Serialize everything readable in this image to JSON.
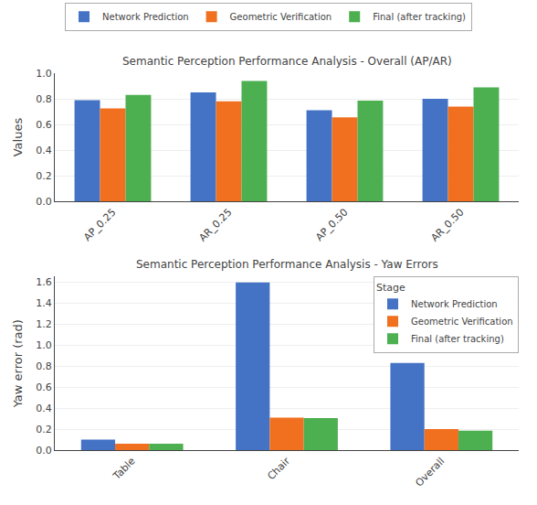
{
  "chart_data": [
    {
      "type": "bar",
      "title": "Semantic Perception Performance Analysis - Overall (AP/AR)",
      "categories": [
        "AP_0.25",
        "AR_0.25",
        "AP_0.50",
        "AR_0.50"
      ],
      "series": [
        {
          "name": "Network Prediction",
          "color": "#4472c4",
          "values": [
            0.79,
            0.85,
            0.71,
            0.8
          ]
        },
        {
          "name": "Geometric Verification",
          "color": "#f07020",
          "values": [
            0.725,
            0.78,
            0.655,
            0.74
          ]
        },
        {
          "name": "Final (after tracking)",
          "color": "#4caf50",
          "values": [
            0.83,
            0.94,
            0.785,
            0.89
          ]
        }
      ],
      "ylabel": "Values",
      "ylim": [
        0.0,
        1.0
      ],
      "yticks": [
        {
          "value": 0.0,
          "label": "0.0"
        },
        0.2,
        0.4,
        0.6,
        0.8,
        {
          "value": 1.0,
          "label": "1.0"
        }
      ],
      "grid": true,
      "legend": "top"
    },
    {
      "type": "bar",
      "title": "Semantic Perception Performance Analysis - Yaw Errors",
      "categories": [
        "Table",
        "Chair",
        "Overall"
      ],
      "series": [
        {
          "name": "Network Prediction",
          "color": "#4472c4",
          "values": [
            0.1,
            1.595,
            0.83
          ]
        },
        {
          "name": "Geometric Verification",
          "color": "#f07020",
          "values": [
            0.06,
            0.31,
            0.2
          ]
        },
        {
          "name": "Final (after tracking)",
          "color": "#4caf50",
          "values": [
            0.06,
            0.305,
            0.185
          ]
        }
      ],
      "ylabel": "Yaw error (rad)",
      "ylim": [
        0.0,
        1.65
      ],
      "yticks": [
        {
          "value": 0.0,
          "label": "0.0"
        },
        0.2,
        0.4,
        0.6,
        0.8,
        {
          "value": 1.0,
          "label": "1.0"
        },
        1.2,
        1.4,
        1.6
      ],
      "grid": true,
      "legend": "upper right",
      "legend_title": "Stage"
    }
  ]
}
